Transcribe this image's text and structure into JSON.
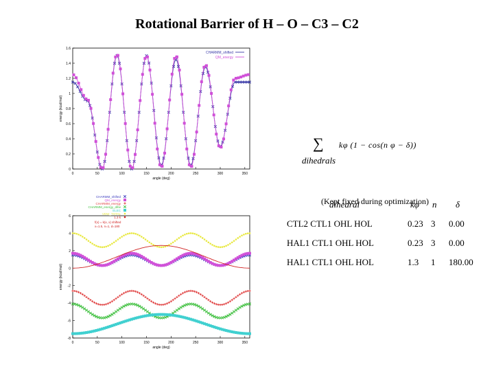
{
  "slide": {
    "title": "Rotational Barrier of  H – O – C3 – C2"
  },
  "formula": {
    "sum_symbol": "∑",
    "terms": "kφ (1 − cos(n φ − δ))",
    "subscript": "dihedrals"
  },
  "parameters": {
    "headers": {
      "dihedral": "dihedral",
      "k": "kφ",
      "n": "n",
      "delta": "δ"
    },
    "rows": [
      {
        "dihedral": "CTL2  CTL1  OHL  HOL",
        "k": "0.23",
        "n": "3",
        "delta": "0.00"
      },
      {
        "dihedral": "HAL1  CTL1  OHL  HOL",
        "k": "0.23",
        "n": "3",
        "delta": "0.00"
      },
      {
        "dihedral": "HAL1  CTL1  OHL  HOL",
        "k": "1.3",
        "n": "1",
        "delta": "180.00"
      }
    ],
    "note": "(Kept fixed during optimization)"
  },
  "chart_data": [
    {
      "type": "line",
      "title": "",
      "xlabel": "angle (deg)",
      "ylabel": "energy (kcal/mol)",
      "xlim": [
        0,
        360
      ],
      "ylim": [
        0,
        1.6
      ],
      "xticks": [
        0,
        50,
        100,
        150,
        200,
        250,
        300,
        350
      ],
      "yticks": [
        0,
        0.2,
        0.4,
        0.6,
        0.8,
        1,
        1.2,
        1.4,
        1.6
      ],
      "legend_position": "top-right",
      "series": [
        {
          "name": "CHARMM_shifted",
          "color": "#3a3aa8",
          "marker": "x",
          "x": [
            0,
            30,
            60,
            90,
            120,
            150,
            180,
            210,
            240,
            270,
            300,
            330,
            360
          ],
          "y": [
            1.15,
            0.9,
            0.0,
            1.5,
            0.0,
            1.5,
            0.05,
            1.45,
            0.05,
            1.35,
            0.3,
            1.15,
            1.15
          ]
        },
        {
          "name": "QM_energy",
          "color": "#d050d8",
          "marker": "square",
          "x": [
            0,
            30,
            60,
            90,
            120,
            150,
            180,
            210,
            240,
            270,
            300,
            330,
            360
          ],
          "y": [
            1.25,
            0.92,
            0.0,
            1.52,
            0.0,
            1.5,
            0.02,
            1.5,
            0.02,
            1.38,
            0.28,
            1.2,
            1.25
          ]
        }
      ]
    },
    {
      "type": "line",
      "title": "",
      "xlabel": "angle (deg)",
      "ylabel": "energy (kcal/mol)",
      "xlim": [
        0,
        360
      ],
      "ylim": [
        -8,
        6
      ],
      "xticks": [
        0,
        50,
        100,
        150,
        200,
        250,
        300,
        350
      ],
      "yticks": [
        -8,
        -6,
        -4,
        -2,
        0,
        2,
        4,
        6
      ],
      "legend_position": "top-left",
      "annotations": [
        "f(x) = k(x, x) shifted",
        "x=1.5, n=1, d=180"
      ],
      "series": [
        {
          "name": "CHARMM_shifted",
          "color": "#4040c0",
          "marker": "x",
          "mean": 0.9,
          "amp": 0.6,
          "n": 3,
          "phase": 0
        },
        {
          "name": "QM_energy",
          "color": "#d050d8",
          "marker": "square",
          "mean": 1.0,
          "amp": 0.7,
          "n": 3,
          "phase": 0
        },
        {
          "name": "CHARMM_energy",
          "color": "#e04040",
          "marker": "plus",
          "mean": -3.4,
          "amp": 0.8,
          "n": 3,
          "phase": 0
        },
        {
          "name": "CHARMM_energy_dihe",
          "color": "#40c040",
          "marker": "x",
          "mean": -4.9,
          "amp": 0.8,
          "n": 3,
          "phase": 0
        },
        {
          "name": "ELEC",
          "color": "#40d0d0",
          "marker": "square",
          "mean": -6.4,
          "amp": 1.1,
          "n": 1,
          "phase": 180
        },
        {
          "name": "VDW_TOTAL",
          "color": "#e8e840",
          "marker": "dot",
          "mean": 3.2,
          "amp": 0.8,
          "n": 3,
          "phase": 0
        },
        {
          "name": "1.3 k",
          "color": "#d02020",
          "marker": "line",
          "mean": 1.3,
          "amp": -1.3,
          "n": 1,
          "phase": 0
        }
      ]
    }
  ]
}
